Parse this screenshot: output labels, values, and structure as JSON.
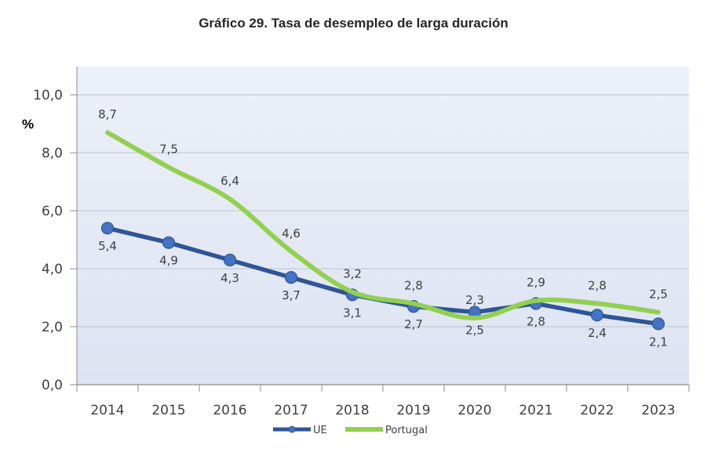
{
  "chart_data": {
    "type": "line",
    "title": "Gráfico 29. Tasa de desempleo de larga duración",
    "xlabel": "",
    "ylabel": "%",
    "ylim": [
      0,
      10
    ],
    "yticks": [
      0,
      2,
      4,
      6,
      8,
      10
    ],
    "ytick_labels": [
      "0,0",
      "2,0",
      "4,0",
      "6,0",
      "8,0",
      "10,0"
    ],
    "categories": [
      "2014",
      "2015",
      "2016",
      "2017",
      "2018",
      "2019",
      "2020",
      "2021",
      "2022",
      "2023"
    ],
    "grid": true,
    "legend_position": "bottom",
    "series": [
      {
        "name": "UE",
        "color": "#2F5597",
        "marker_color": "#4472C4",
        "marker": "circle",
        "smooth": false,
        "label_position": "below",
        "values": [
          5.4,
          4.9,
          4.3,
          3.7,
          3.1,
          2.7,
          2.5,
          2.8,
          2.4,
          2.1
        ],
        "labels": [
          "5,4",
          "4,9",
          "4,3",
          "3,7",
          "3,1",
          "2,7",
          "2,5",
          "2,8",
          "2,4",
          "2,1"
        ]
      },
      {
        "name": "Portugal",
        "color": "#92D050",
        "marker": "none",
        "smooth": true,
        "label_position": "above",
        "values": [
          8.7,
          7.5,
          6.4,
          4.6,
          3.2,
          2.8,
          2.3,
          2.9,
          2.8,
          2.5
        ],
        "labels": [
          "8,7",
          "7,5",
          "6,4",
          "4,6",
          "3,2",
          "2,8",
          "2,3",
          "2,9",
          "2,8",
          "2,5"
        ]
      }
    ]
  }
}
